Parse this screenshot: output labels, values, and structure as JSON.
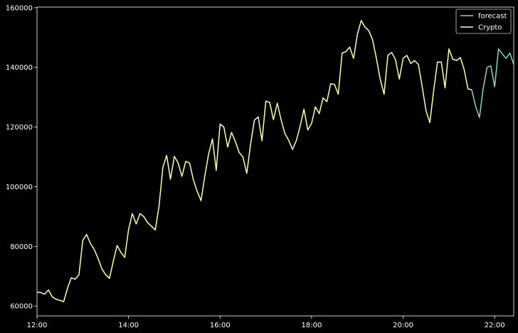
{
  "chart_data": {
    "type": "line",
    "title": "",
    "xlabel": "",
    "ylabel": "",
    "x_ticks": [
      "12:00",
      "14:00",
      "16:00",
      "18:00",
      "20:00",
      "22:00"
    ],
    "xlim": [
      "12:00",
      "22:25"
    ],
    "y_ticks": [
      "60000",
      "80000",
      "100000",
      "120000",
      "140000",
      "160000"
    ],
    "ylim": [
      56700,
      160200
    ],
    "grid": false,
    "legend": "top-right",
    "colors": {
      "background": "#000000",
      "axes": "#ffffff",
      "forecast": "#8dd3c7",
      "crypto": "#ffffb3"
    },
    "series": [
      {
        "name": "forecast",
        "x": [
          "21:30",
          "21:35",
          "21:40",
          "21:45",
          "21:50",
          "21:55",
          "22:00",
          "22:05",
          "22:10",
          "22:15",
          "22:20",
          "22:25"
        ],
        "values": [
          132500,
          127000,
          123200,
          133000,
          140000,
          140500,
          133500,
          146200,
          144500,
          143000,
          144800,
          141000
        ]
      },
      {
        "name": "Crypto",
        "x": [
          "12:00",
          "12:05",
          "12:10",
          "12:15",
          "12:20",
          "12:25",
          "12:30",
          "12:35",
          "12:40",
          "12:45",
          "12:50",
          "12:55",
          "13:00",
          "13:05",
          "13:10",
          "13:15",
          "13:20",
          "13:25",
          "13:30",
          "13:35",
          "13:40",
          "13:45",
          "13:50",
          "13:55",
          "14:00",
          "14:05",
          "14:10",
          "14:15",
          "14:20",
          "14:25",
          "14:30",
          "14:35",
          "14:40",
          "14:45",
          "14:50",
          "14:55",
          "15:00",
          "15:05",
          "15:10",
          "15:15",
          "15:20",
          "15:25",
          "15:30",
          "15:35",
          "15:40",
          "15:45",
          "15:50",
          "15:55",
          "16:00",
          "16:05",
          "16:10",
          "16:15",
          "16:20",
          "16:25",
          "16:30",
          "16:35",
          "16:40",
          "16:45",
          "16:50",
          "16:55",
          "17:00",
          "17:05",
          "17:10",
          "17:15",
          "17:20",
          "17:25",
          "17:30",
          "17:35",
          "17:40",
          "17:45",
          "17:50",
          "17:55",
          "18:00",
          "18:05",
          "18:10",
          "18:15",
          "18:20",
          "18:25",
          "18:30",
          "18:35",
          "18:40",
          "18:45",
          "18:50",
          "18:55",
          "19:00",
          "19:05",
          "19:10",
          "19:15",
          "19:20",
          "19:25",
          "19:30",
          "19:35",
          "19:40",
          "19:45",
          "19:50",
          "19:55",
          "20:00",
          "20:05",
          "20:10",
          "20:15",
          "20:20",
          "20:25",
          "20:30",
          "20:35",
          "20:40",
          "20:45",
          "20:50",
          "20:55",
          "21:00",
          "21:05",
          "21:10",
          "21:15",
          "21:20",
          "21:25",
          "21:30"
        ],
        "values": [
          64700,
          64500,
          64000,
          65400,
          63100,
          62300,
          61900,
          61500,
          66000,
          69500,
          69000,
          70500,
          82000,
          84000,
          81000,
          79000,
          76000,
          72500,
          70500,
          69300,
          75000,
          80300,
          78000,
          76300,
          85500,
          91000,
          87500,
          91000,
          90000,
          88000,
          86800,
          85500,
          93500,
          106500,
          110500,
          102500,
          110200,
          108000,
          103500,
          108500,
          108000,
          102300,
          98500,
          95300,
          103500,
          111000,
          116000,
          105500,
          121000,
          120000,
          113300,
          118200,
          115200,
          111500,
          110000,
          104500,
          114300,
          122300,
          123400,
          115400,
          128700,
          128300,
          122500,
          128000,
          122500,
          117800,
          115500,
          112500,
          115500,
          120300,
          126000,
          119000,
          121200,
          126800,
          124500,
          129800,
          128500,
          134500,
          134300,
          131000,
          144800,
          145300,
          146800,
          143000,
          151000,
          155700,
          153500,
          152300,
          149200,
          143000,
          136000,
          131000,
          144000,
          145000,
          142600,
          136100,
          143100,
          144000,
          141300,
          142300,
          141000,
          133500,
          125500,
          121500,
          132000,
          141800,
          141800,
          133100,
          146200,
          142800,
          142300,
          143300,
          139300,
          132800,
          132500
        ]
      }
    ]
  }
}
